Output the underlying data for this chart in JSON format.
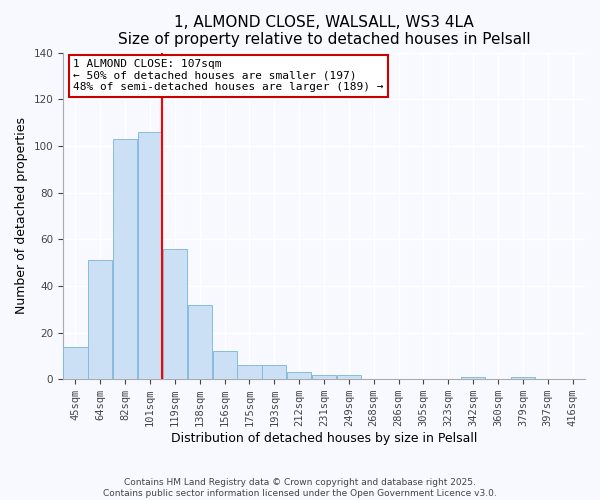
{
  "title": "1, ALMOND CLOSE, WALSALL, WS3 4LA",
  "subtitle": "Size of property relative to detached houses in Pelsall",
  "xlabel": "Distribution of detached houses by size in Pelsall",
  "ylabel": "Number of detached properties",
  "bar_color": "#cce0f5",
  "bar_edge_color": "#88bbdd",
  "background_color": "#f7f9ff",
  "plot_bg_color": "#f7f9ff",
  "categories": [
    "45sqm",
    "64sqm",
    "82sqm",
    "101sqm",
    "119sqm",
    "138sqm",
    "156sqm",
    "175sqm",
    "193sqm",
    "212sqm",
    "231sqm",
    "249sqm",
    "268sqm",
    "286sqm",
    "305sqm",
    "323sqm",
    "342sqm",
    "360sqm",
    "379sqm",
    "397sqm",
    "416sqm"
  ],
  "values": [
    14,
    51,
    103,
    106,
    56,
    32,
    12,
    6,
    6,
    3,
    2,
    2,
    0,
    0,
    0,
    0,
    1,
    0,
    1,
    0,
    0
  ],
  "ylim": [
    0,
    140
  ],
  "yticks": [
    0,
    20,
    40,
    60,
    80,
    100,
    120,
    140
  ],
  "red_line_index": 3,
  "annotation_title": "1 ALMOND CLOSE: 107sqm",
  "annotation_line1": "← 50% of detached houses are smaller (197)",
  "annotation_line2": "48% of semi-detached houses are larger (189) →",
  "annotation_box_color": "#ffffff",
  "annotation_box_edge": "#cc0000",
  "footer1": "Contains HM Land Registry data © Crown copyright and database right 2025.",
  "footer2": "Contains public sector information licensed under the Open Government Licence v3.0."
}
